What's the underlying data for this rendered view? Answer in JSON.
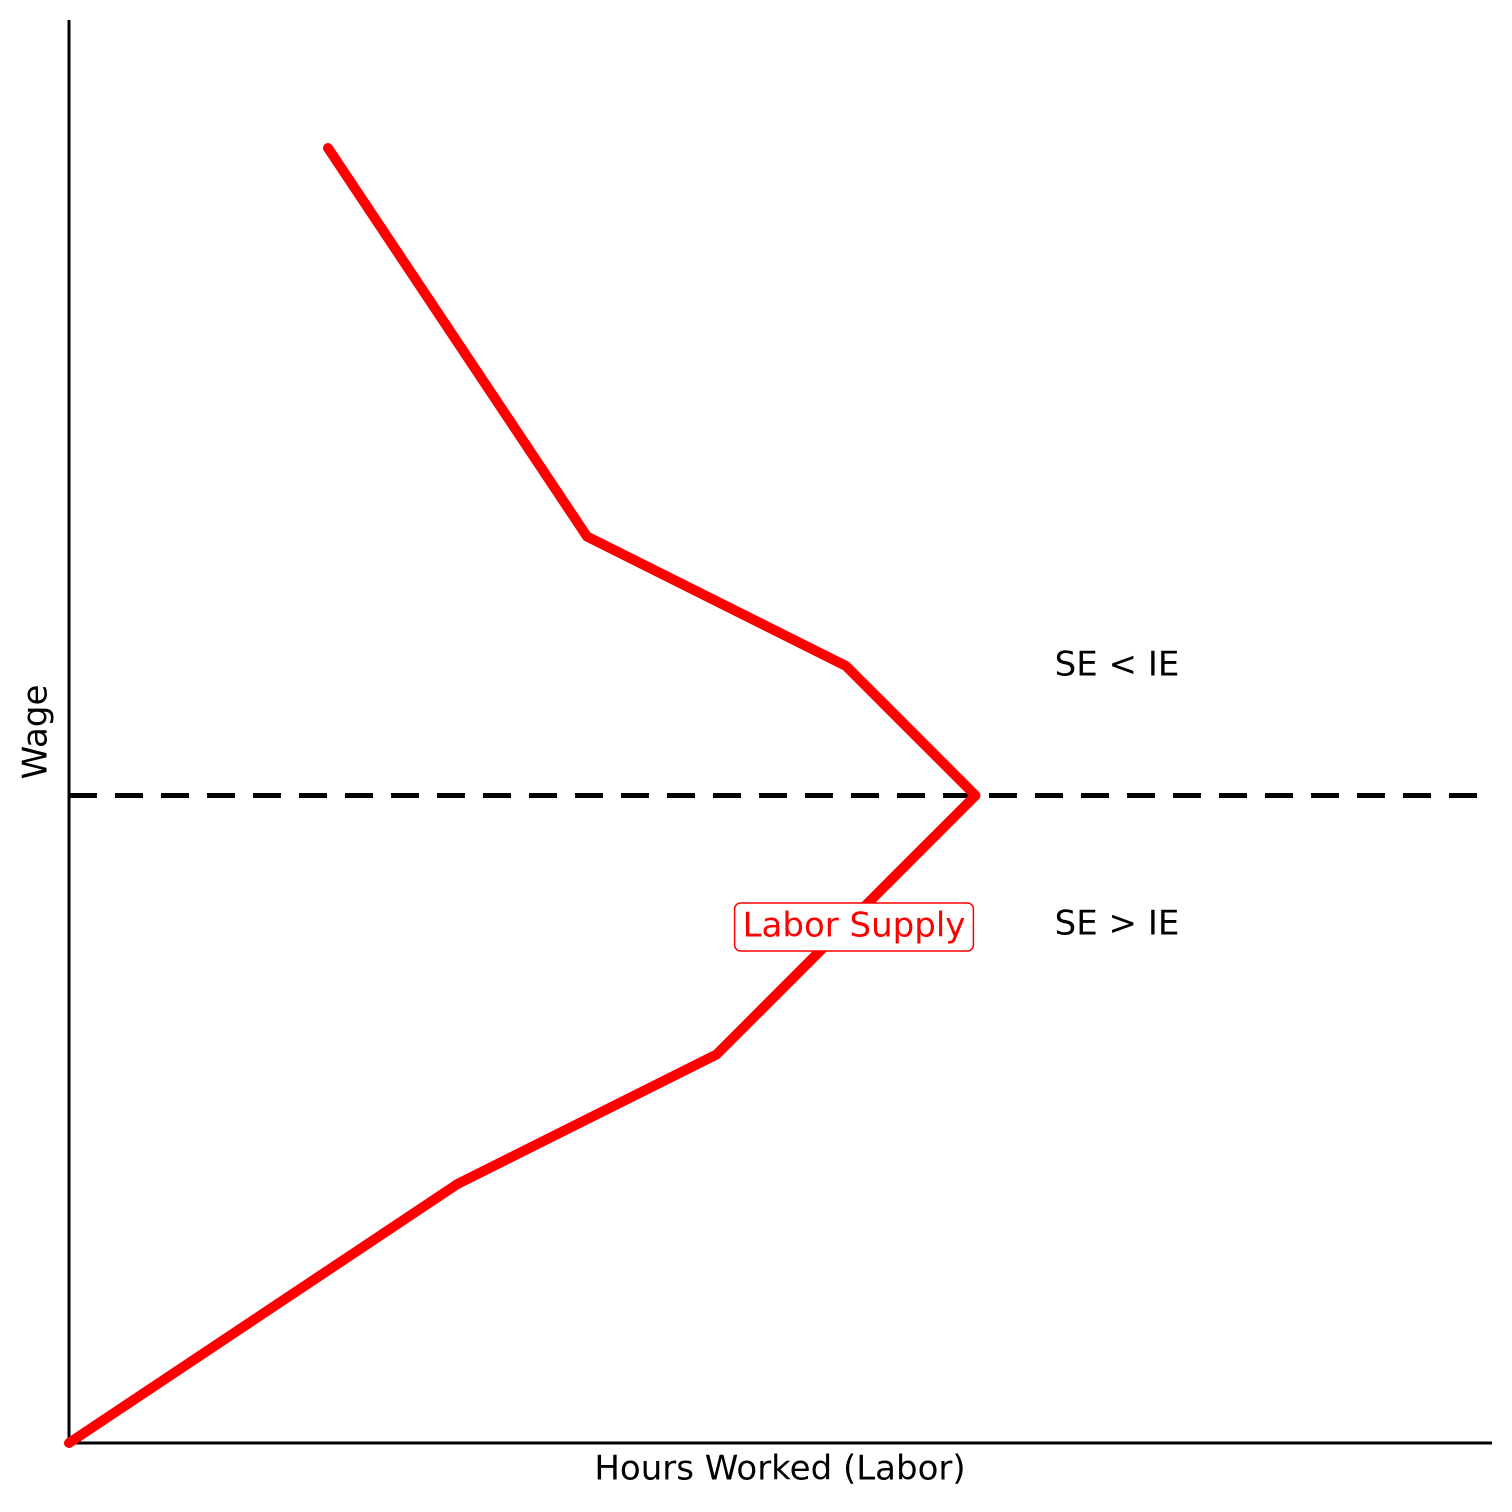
{
  "chart_data": {
    "type": "line",
    "title": "",
    "xlabel": "Hours Worked (Labor)",
    "ylabel": "Wage",
    "xlim": [
      0,
      11
    ],
    "ylim": [
      0,
      11
    ],
    "grid": false,
    "x_ticks_shown": false,
    "y_ticks_shown": false,
    "series": [
      {
        "name": "Labor Supply",
        "color": "#ff0000",
        "x": [
          0,
          3,
          5,
          7,
          6,
          4,
          2
        ],
        "y": [
          0,
          2,
          3,
          5,
          6,
          7,
          10
        ]
      }
    ],
    "reference_lines": [
      {
        "orientation": "horizontal",
        "y": 5,
        "style": "dashed",
        "color": "#000000"
      }
    ],
    "annotations": [
      {
        "text": "SE < IE",
        "x": 8,
        "y": 6,
        "color": "#000000"
      },
      {
        "text": "SE > IE",
        "x": 8,
        "y": 4,
        "color": "#000000"
      },
      {
        "text": "Labor Supply",
        "x": 6,
        "y": 4,
        "color": "#ff0000",
        "boxed": true
      }
    ]
  }
}
